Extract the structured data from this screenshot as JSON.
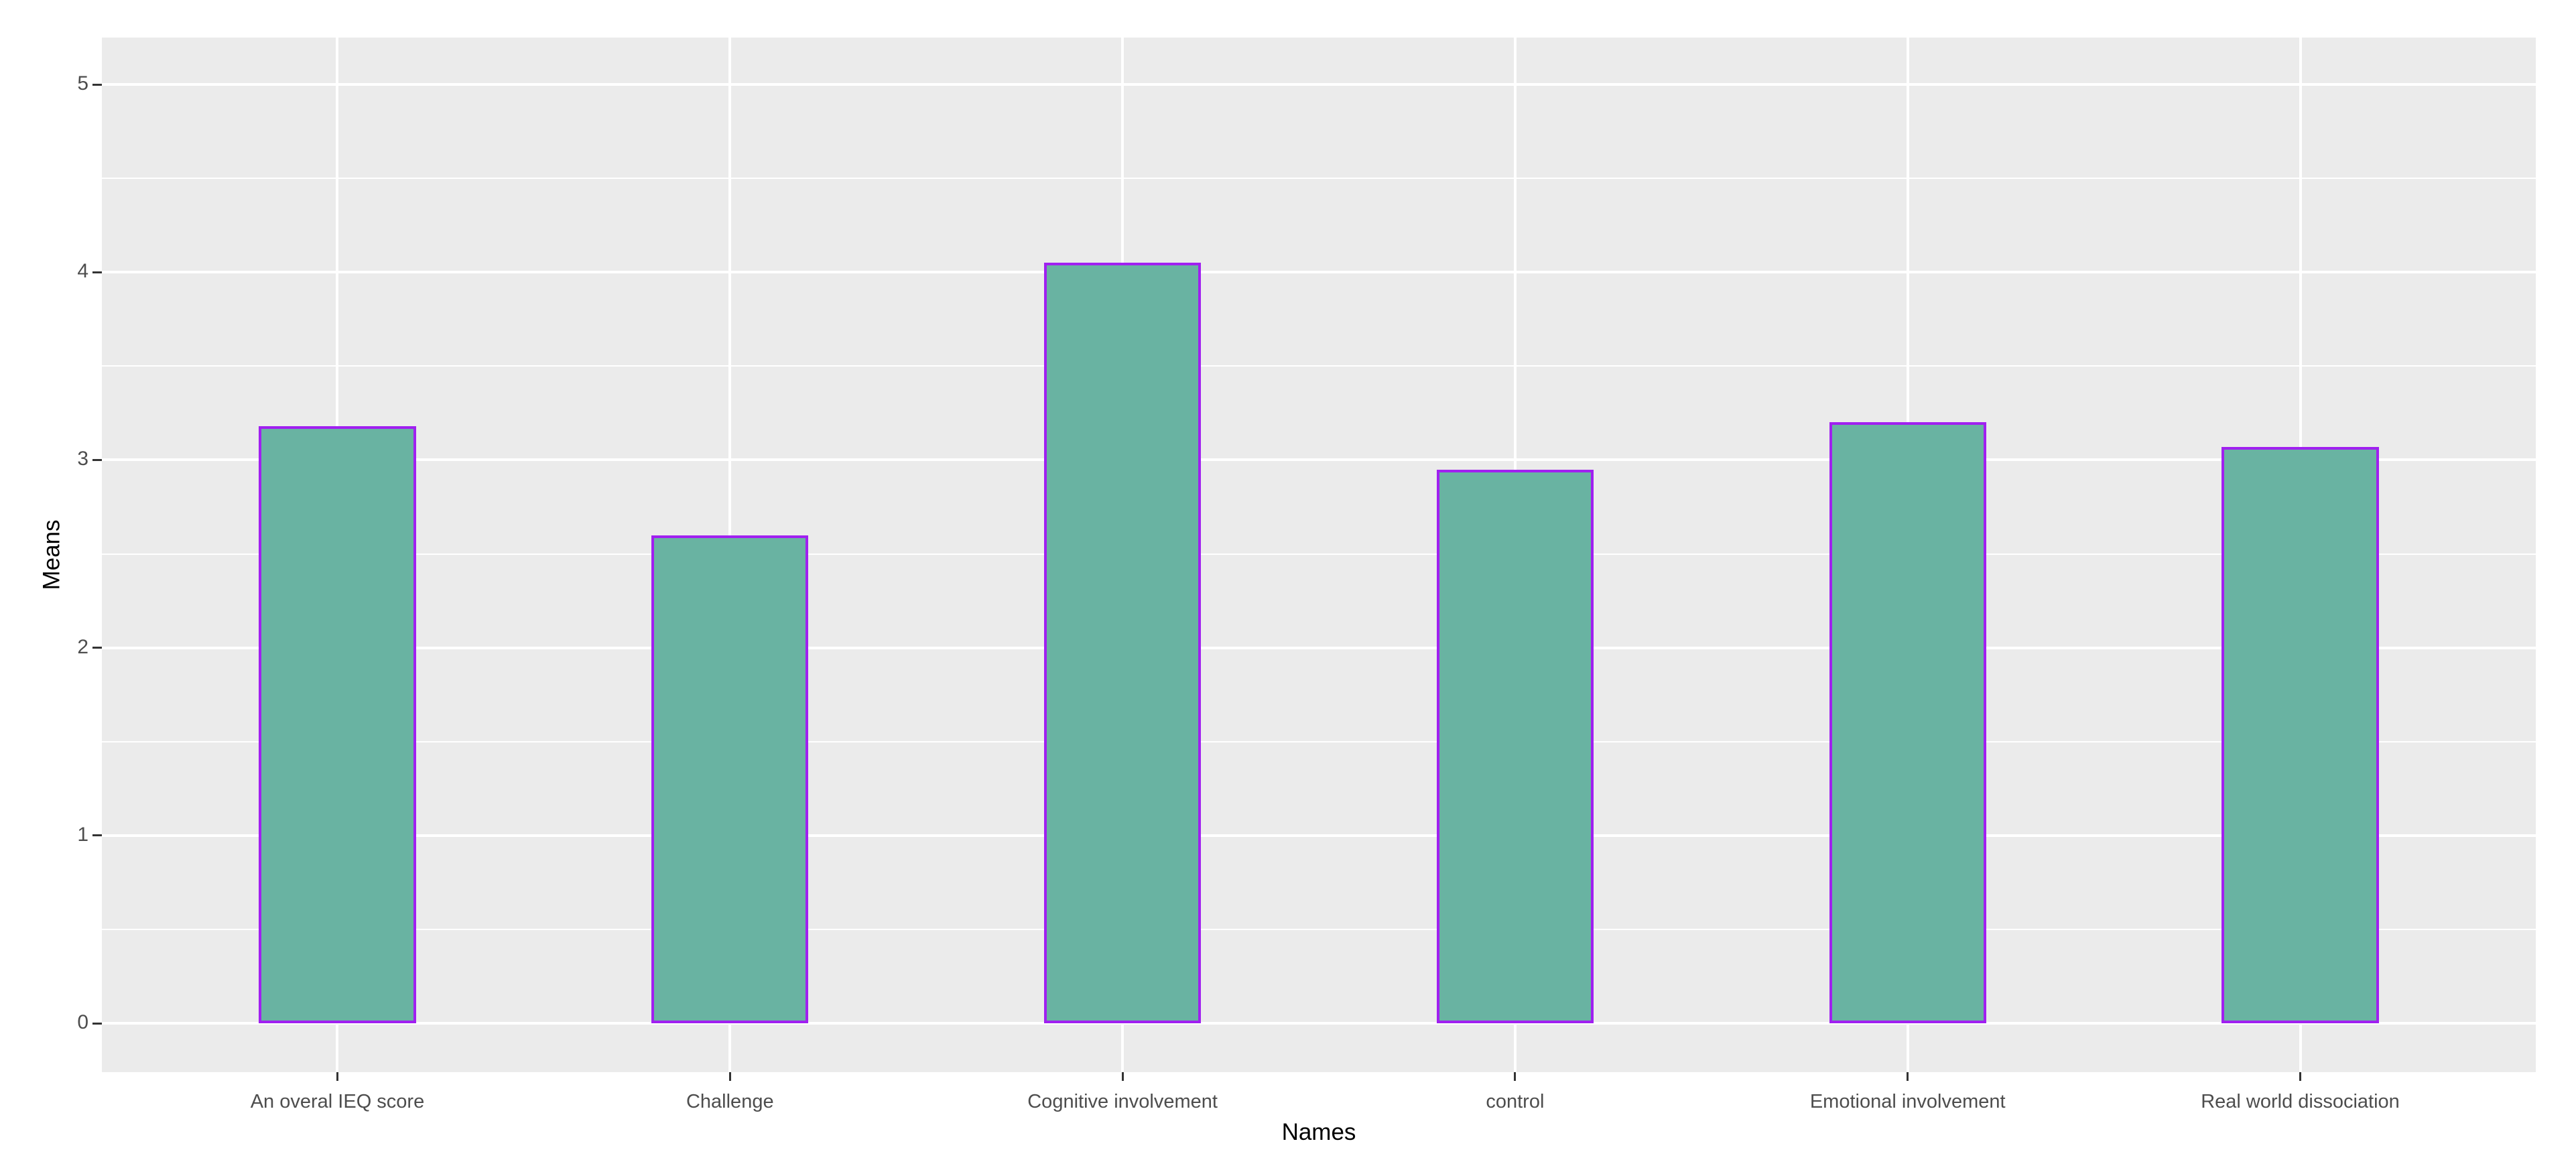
{
  "chart_data": {
    "type": "bar",
    "title": "",
    "categories": [
      "An overal IEQ score",
      "Challenge",
      "Cognitive involvement",
      "control",
      "Emotional involvement",
      "Real world dissociation"
    ],
    "values": [
      3.18,
      2.6,
      4.05,
      2.95,
      3.2,
      3.07
    ],
    "xlabel": "Names",
    "ylabel": "Means",
    "y_ticks": [
      0,
      1,
      2,
      3,
      4,
      5
    ],
    "y_tick_labels": [
      "0",
      "1",
      "2",
      "3",
      "4",
      "5"
    ],
    "y_minor_ticks": [
      0.5,
      1.5,
      2.5,
      3.5,
      4.5
    ],
    "ylim": [
      0,
      5
    ],
    "ylim_panel": [
      -0.26,
      5.25
    ],
    "grid": "major-and-minor, white on grey panel",
    "legend_position": "none",
    "colors": {
      "bar_fill": "#69B3A2",
      "bar_border": "#A020F0",
      "panel_background": "#EBEBEB",
      "gridline": "#FFFFFF",
      "tick_label": "#4D4D4D",
      "tick_mark": "#333333",
      "axis_title": "#000000",
      "figure_background": "#FFFFFF"
    }
  }
}
